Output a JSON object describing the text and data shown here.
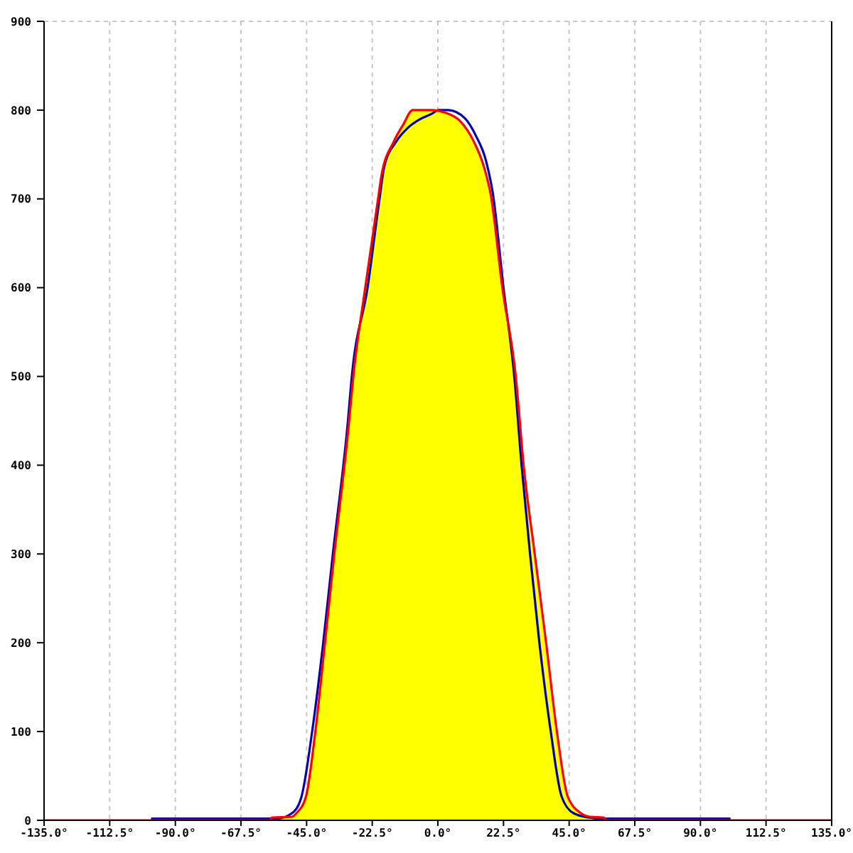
{
  "chart_data": {
    "type": "line",
    "xlim": [
      -135,
      135
    ],
    "xticks": [
      {
        "value": -135,
        "label": "-135.0°"
      },
      {
        "value": -112.5,
        "label": "-112.5°"
      },
      {
        "value": -90,
        "label": "-90.0°"
      },
      {
        "value": -67.5,
        "label": "-67.5°"
      },
      {
        "value": -45,
        "label": "-45.0°"
      },
      {
        "value": -22.5,
        "label": "-22.5°"
      },
      {
        "value": 0,
        "label": "0.0°"
      },
      {
        "value": 22.5,
        "label": "22.5°"
      },
      {
        "value": 45,
        "label": "45.0°"
      },
      {
        "value": 67.5,
        "label": "67.5°"
      },
      {
        "value": 90,
        "label": "90.0°"
      },
      {
        "value": 112.5,
        "label": "112.5°"
      },
      {
        "value": 135,
        "label": "135.0°"
      }
    ],
    "ylim": [
      0,
      900
    ],
    "yticks": [
      0,
      100,
      200,
      300,
      400,
      500,
      600,
      700,
      800,
      900
    ],
    "grid": true,
    "line_style": "solid",
    "series": [
      {
        "type": "area",
        "color": "#ffff00",
        "x": [
          -57,
          -50,
          -48.5,
          -45.2,
          -42,
          -38.7,
          -35.5,
          -30.6,
          -29,
          -24.9,
          -20.5,
          -19.3,
          -15.2,
          -12,
          -8.6,
          -2.2,
          2.7,
          7.5,
          12.4,
          15.7,
          18.1,
          22.1,
          26.7,
          29.4,
          33.2,
          37.1,
          40.8,
          44.5,
          49,
          52,
          57
        ],
        "values": [
          3,
          4,
          8,
          27,
          100,
          200,
          300,
          444,
          500,
          600,
          700,
          727,
          764,
          783,
          800,
          800,
          797,
          788,
          764,
          737,
          705,
          600,
          500,
          400,
          300,
          200,
          100,
          27,
          8,
          4,
          3
        ]
      },
      {
        "color": "#0000b0",
        "x": [
          -98,
          -55,
          -50,
          -46.8,
          -43.1,
          -39.3,
          -36,
          -31,
          -29.5,
          -24.1,
          -20,
          -18.4,
          -14.4,
          -10.3,
          -6,
          -2,
          0.2,
          3.5,
          9.2,
          13.2,
          16.5,
          18.9,
          22.5,
          26.2,
          28.7,
          31.6,
          34.8,
          38.7,
          42.4,
          46.5,
          52,
          55,
          100
        ],
        "values": [
          2,
          2,
          8,
          26,
          100,
          200,
          300,
          444,
          500,
          600,
          700,
          736,
          764,
          780,
          790,
          796,
          800,
          800,
          791,
          770,
          743,
          705,
          600,
          500,
          400,
          300,
          200,
          100,
          27,
          8,
          3,
          2,
          2
        ]
      },
      {
        "color": "#ff0000",
        "x": [
          -135,
          -57.5,
          -57,
          -50,
          -48.5,
          -45.2,
          -42,
          -38.7,
          -35.5,
          -30.6,
          -29,
          -24.9,
          -20.5,
          -19.3,
          -15.2,
          -12,
          -8.6,
          -2.2,
          2.7,
          7.5,
          12.4,
          15.7,
          18.1,
          22.1,
          26.7,
          29.4,
          33.2,
          37.1,
          40.8,
          44.5,
          49,
          52,
          57,
          57.5,
          135
        ],
        "values": [
          0,
          0,
          3,
          4,
          8,
          27,
          100,
          200,
          300,
          444,
          500,
          600,
          700,
          727,
          764,
          783,
          800,
          800,
          797,
          788,
          764,
          737,
          705,
          600,
          500,
          400,
          300,
          200,
          100,
          27,
          8,
          4,
          3,
          0,
          0
        ]
      }
    ]
  }
}
